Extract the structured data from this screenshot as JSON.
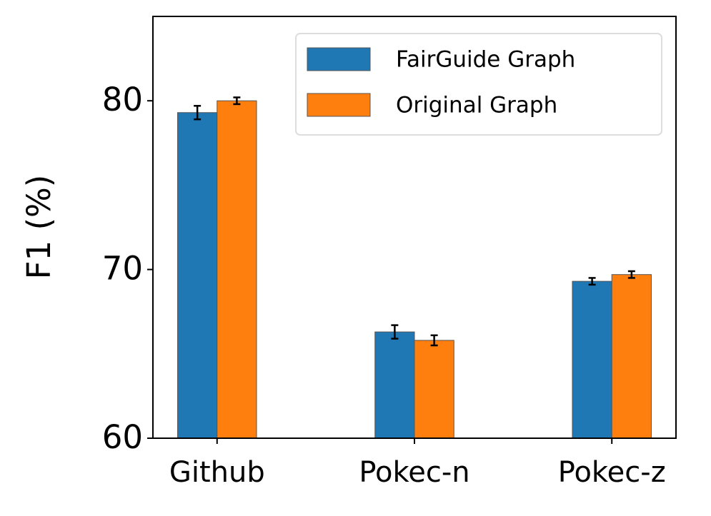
{
  "chart_data": {
    "type": "bar",
    "y_label": "F1 (%)",
    "categories": [
      "Github",
      "Pokec-n",
      "Pokec-z"
    ],
    "series": [
      {
        "name": "FairGuide Graph",
        "color": "#1f77b4",
        "values": [
          79.3,
          66.3,
          69.3
        ],
        "errors": [
          0.4,
          0.4,
          0.2
        ]
      },
      {
        "name": "Original Graph",
        "color": "#ff7f0e",
        "values": [
          80.0,
          65.8,
          69.7
        ],
        "errors": [
          0.2,
          0.3,
          0.2
        ]
      }
    ],
    "ylim": [
      60,
      85
    ],
    "yticks": [
      60,
      70,
      80
    ],
    "legend": "upper right",
    "grid": false
  }
}
